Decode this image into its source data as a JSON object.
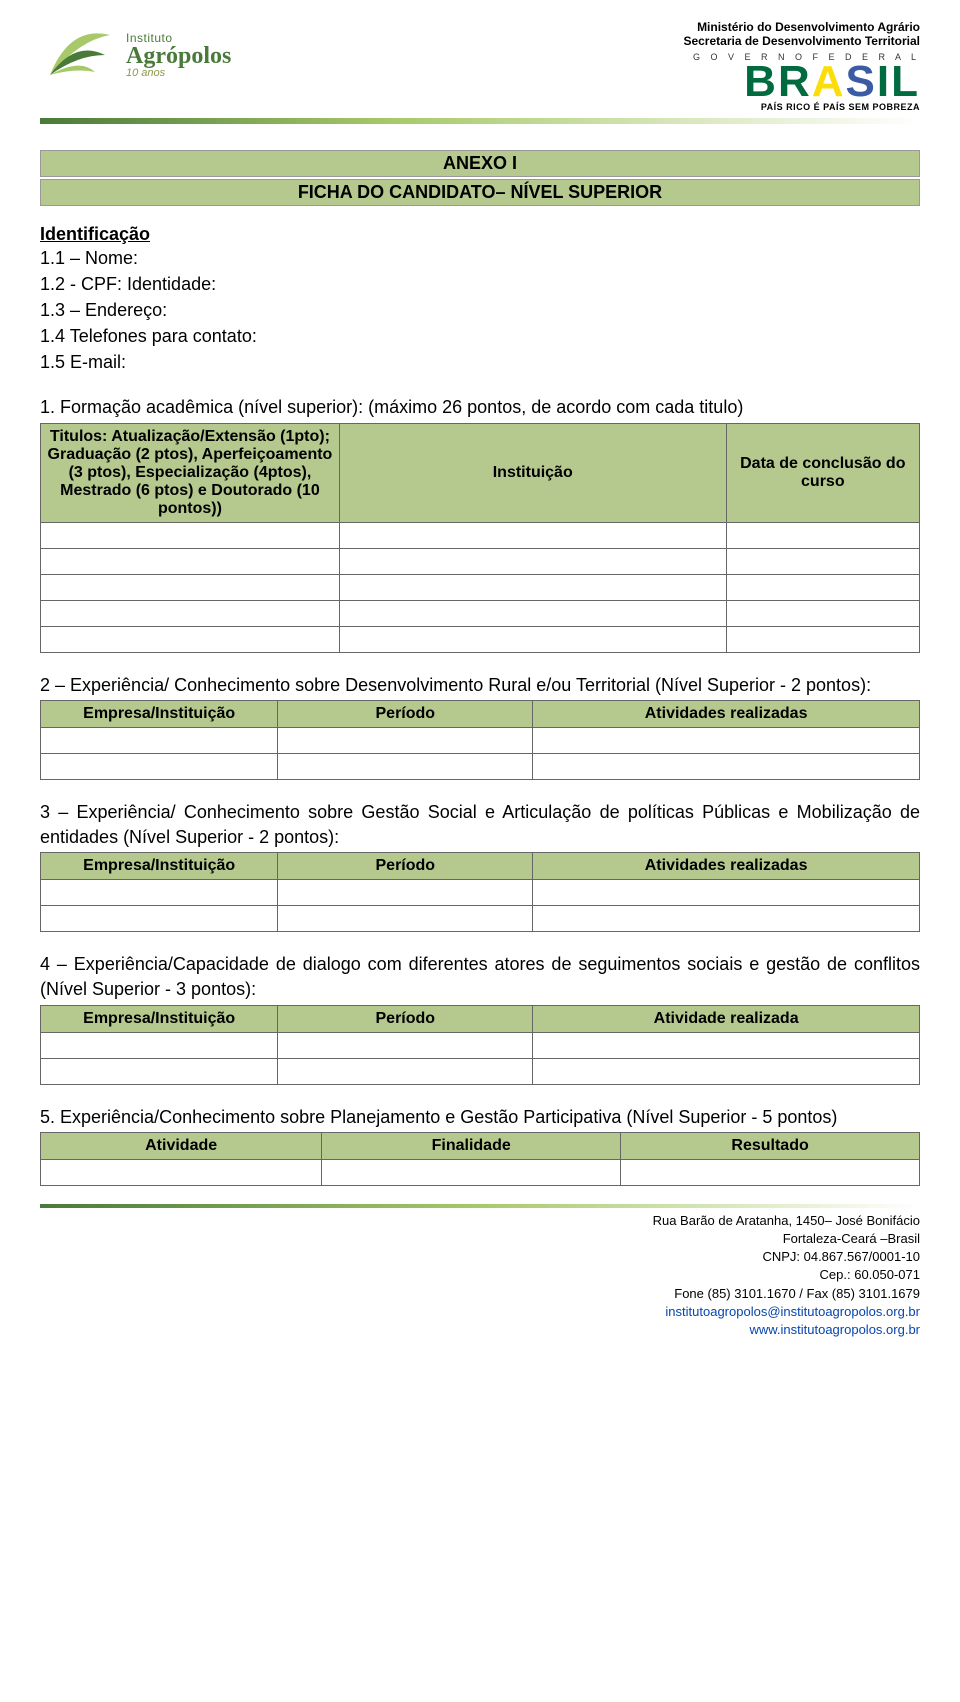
{
  "header": {
    "logo_institute": "Instituto",
    "logo_name": "Agrópolos",
    "logo_years": "10 anos",
    "ministry_line1": "Ministério do Desenvolvimento Agrário",
    "ministry_line2": "Secretaria de Desenvolvimento Territorial",
    "gov_line": "G O V E R N O   F E D E R A L",
    "brasil_letters": [
      "B",
      "R",
      "A",
      "S",
      "I",
      "L"
    ],
    "slogan": "PAÍS RICO É PAÍS SEM POBREZA"
  },
  "title": {
    "line1": "ANEXO I",
    "line2": "FICHA DO CANDIDATO– NÍVEL SUPERIOR"
  },
  "identificacao": {
    "heading": "Identificação",
    "f1": "1.1 – Nome:",
    "f2": "1.2 - CPF: Identidade:",
    "f3": "1.3 – Endereço:",
    "f4": "1.4 Telefones para contato:",
    "f5": "1.5 E-mail:"
  },
  "section1": {
    "intro": "1. Formação acadêmica (nível superior): (máximo 26 pontos, de acordo com cada titulo)",
    "col1": "Titulos: Atualização/Extensão (1pto);  Graduação (2 ptos), Aperfeiçoamento (3 ptos), Especialização (4ptos), Mestrado (6 ptos) e Doutorado (10 pontos))",
    "col2": "Instituição",
    "col3": "Data de conclusão do curso",
    "rows": 5
  },
  "section2": {
    "intro": "2 – Experiência/ Conhecimento sobre Desenvolvimento Rural e/ou Territorial (Nível Superior - 2 pontos):",
    "c1": "Empresa/Instituição",
    "c2": "Período",
    "c3": "Atividades realizadas",
    "rows": 2
  },
  "section3": {
    "intro": "3 – Experiência/ Conhecimento sobre Gestão Social e Articulação de políticas Públicas e Mobilização de entidades (Nível Superior - 2 pontos):",
    "c1": "Empresa/Instituição",
    "c2": "Período",
    "c3": "Atividades realizadas",
    "rows": 2
  },
  "section4": {
    "intro": "4 – Experiência/Capacidade de dialogo com diferentes atores de seguimentos sociais e gestão de conflitos (Nível Superior - 3 pontos):",
    "c1": "Empresa/Instituição",
    "c2": "Período",
    "c3": "Atividade realizada",
    "rows": 2
  },
  "section5": {
    "intro": "5. Experiência/Conhecimento sobre Planejamento e Gestão Participativa (Nível Superior - 5 pontos)",
    "c1": "Atividade",
    "c2": "Finalidade",
    "c3": "Resultado",
    "rows": 1
  },
  "footer": {
    "l1": "Rua Barão de Aratanha, 1450– José Bonifácio",
    "l2": "Fortaleza-Ceará –Brasil",
    "l3": "CNPJ: 04.867.567/0001-10",
    "l4": "Cep.: 60.050-071",
    "l5": "Fone (85) 3101.1670 / Fax (85) 3101.1679",
    "l6": "institutoagropolos@institutoagropolos.org.br",
    "l7": "www.institutoagropolos.org.br"
  },
  "colors": {
    "header_green": "#b5c98e",
    "border": "#666666",
    "leaf_dark": "#4a7a3a",
    "leaf_light": "#a8c96a",
    "link": "#0645ad"
  }
}
